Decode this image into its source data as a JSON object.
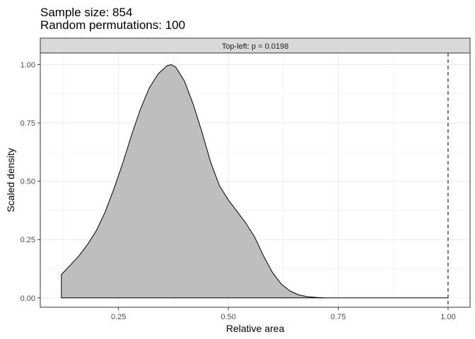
{
  "chart_data": {
    "type": "area",
    "title": "Sample size: 854",
    "subtitle": "Random permutations: 100",
    "panel_label": "Top-left: p = 0.0198",
    "xlabel": "Relative area",
    "ylabel": "Scaled density",
    "xlim": [
      0.072,
      1.05
    ],
    "ylim": [
      -0.04,
      1.05
    ],
    "x_ticks": [
      0.25,
      0.5,
      0.75,
      1.0
    ],
    "x_tick_labels": [
      "0.25",
      "0.50",
      "0.75",
      "1.00"
    ],
    "y_ticks": [
      0.0,
      0.25,
      0.5,
      0.75,
      1.0
    ],
    "y_tick_labels": [
      "0.00",
      "0.25",
      "0.50",
      "0.75",
      "1.00"
    ],
    "grid": true,
    "observed_value": 1.0,
    "colors": {
      "fill": "#bebebe",
      "outline": "#000000",
      "strip_background": "#d9d9d9",
      "grid": "#ebebeb",
      "panel_border": "#333333"
    },
    "series": [
      {
        "x": [
          0.12,
          0.14,
          0.16,
          0.18,
          0.2,
          0.22,
          0.24,
          0.26,
          0.28,
          0.3,
          0.32,
          0.34,
          0.36,
          0.37,
          0.38,
          0.4,
          0.42,
          0.44,
          0.46,
          0.48,
          0.5,
          0.52,
          0.54,
          0.56,
          0.58,
          0.6,
          0.62,
          0.64,
          0.66,
          0.68,
          0.7,
          0.72
        ],
        "y": [
          0.1,
          0.14,
          0.18,
          0.23,
          0.29,
          0.37,
          0.47,
          0.58,
          0.7,
          0.81,
          0.9,
          0.96,
          0.995,
          1.0,
          0.99,
          0.93,
          0.83,
          0.71,
          0.58,
          0.48,
          0.42,
          0.37,
          0.32,
          0.26,
          0.18,
          0.11,
          0.06,
          0.03,
          0.013,
          0.005,
          0.002,
          0.0
        ]
      }
    ]
  }
}
